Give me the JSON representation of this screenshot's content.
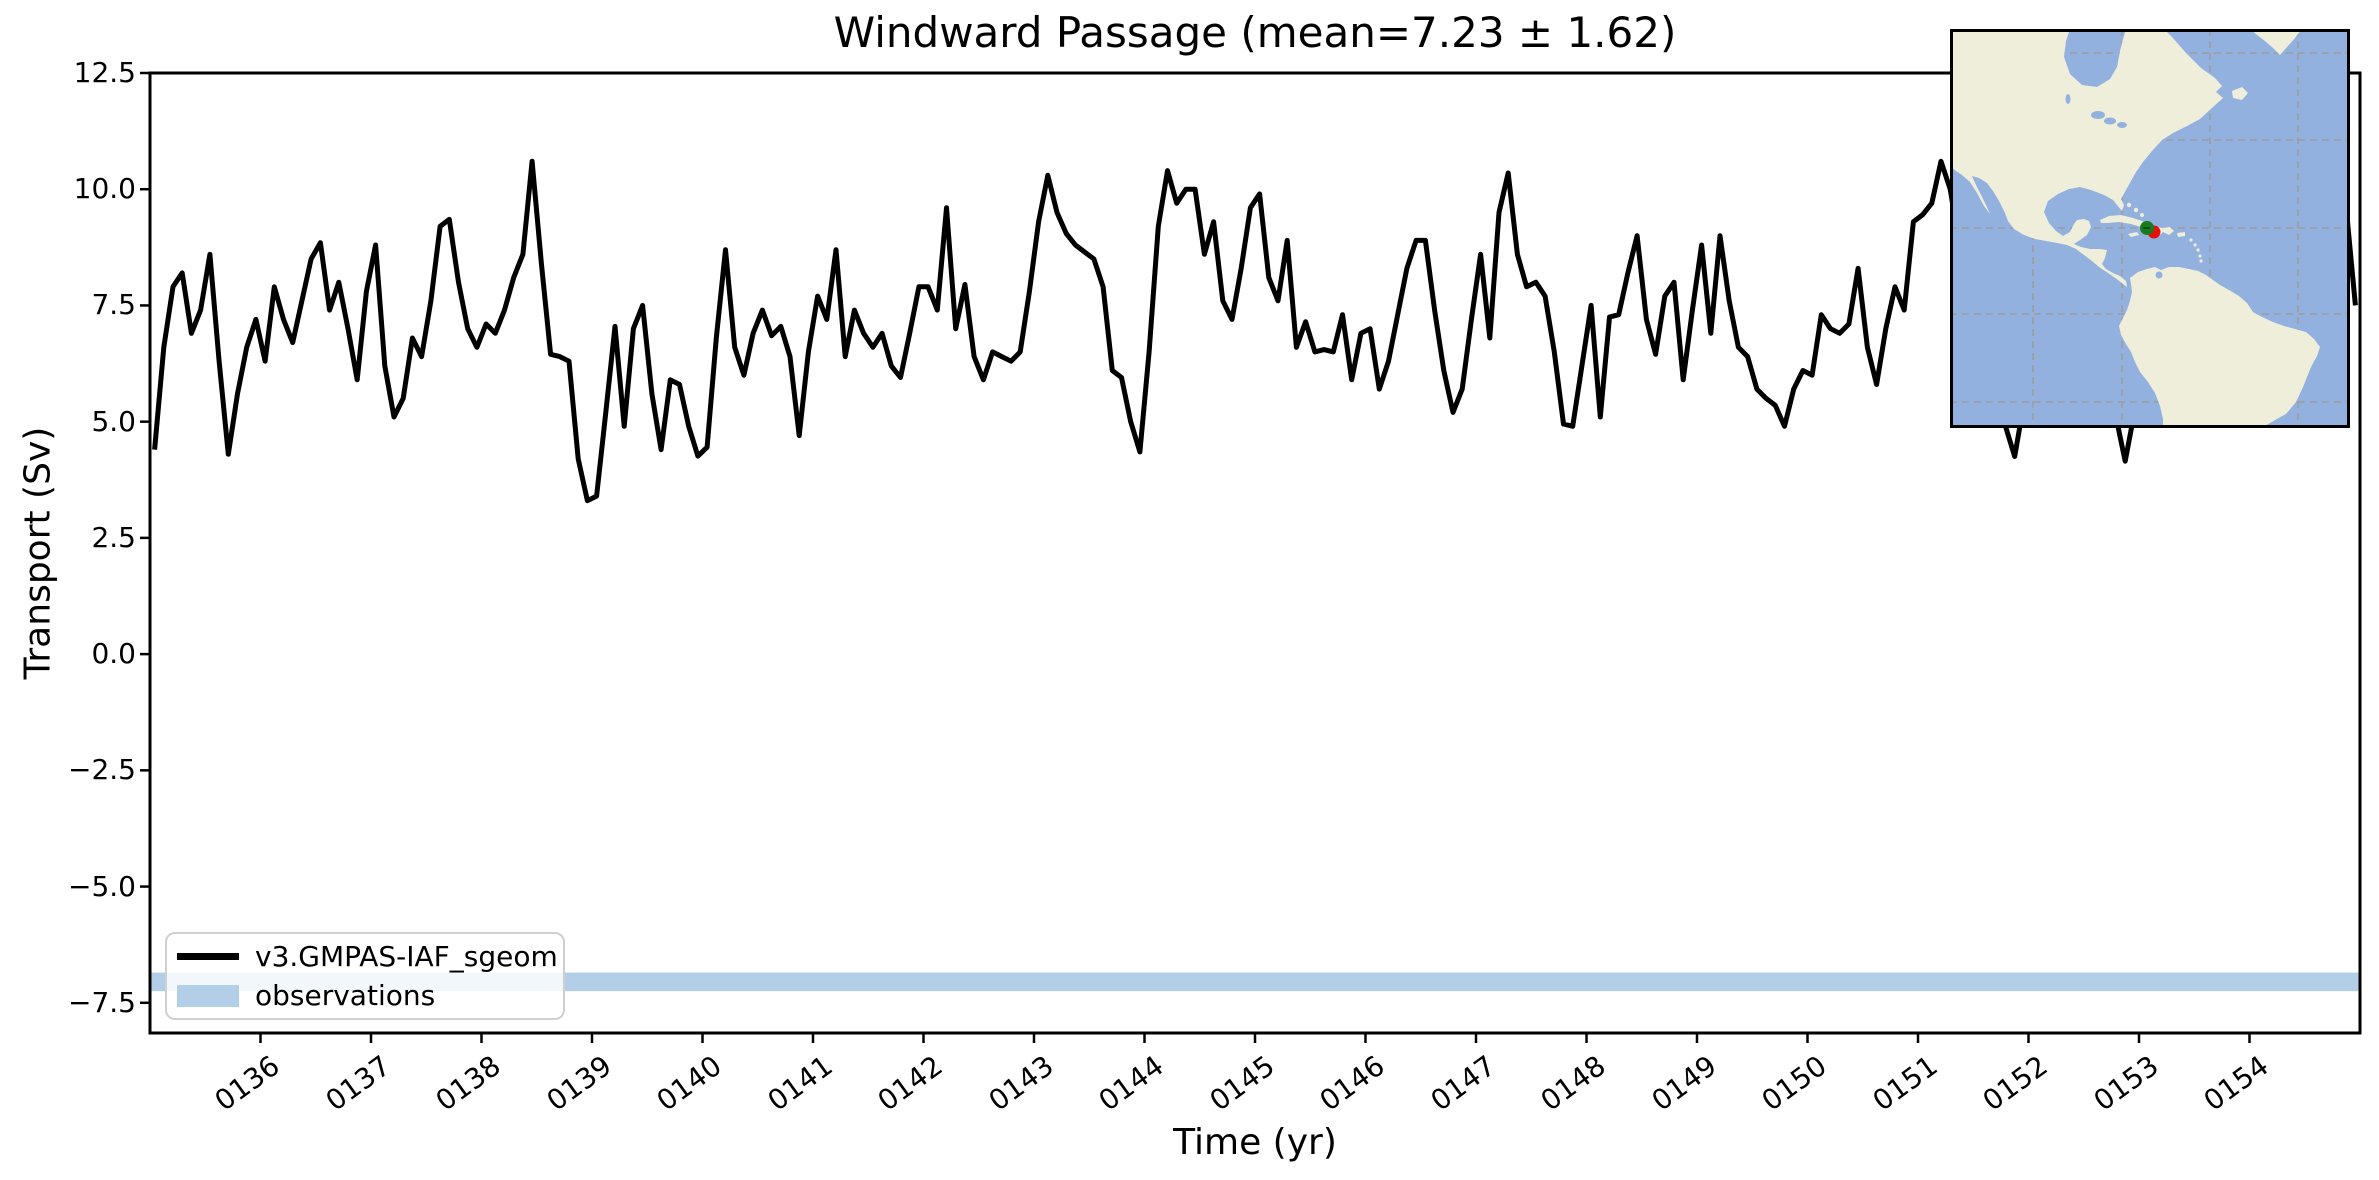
{
  "figure": {
    "title": "Windward Passage (mean=7.23 ± 1.62)"
  },
  "chart_data": {
    "type": "line",
    "title": "Windward Passage (mean=7.23 ± 1.62)",
    "xlabel": "Time (yr)",
    "ylabel": "Transport (Sv)",
    "mean": 7.23,
    "std": 1.62,
    "xlim": [
      135,
      155
    ],
    "ylim": [
      -8.15,
      12.5
    ],
    "grid": false,
    "legend_position": "lower left",
    "x_tick_values": [
      136,
      137,
      138,
      139,
      140,
      141,
      142,
      143,
      144,
      145,
      146,
      147,
      148,
      149,
      150,
      151,
      152,
      153,
      154
    ],
    "x_tick_labels": [
      "0136",
      "0137",
      "0138",
      "0139",
      "0140",
      "0141",
      "0142",
      "0143",
      "0144",
      "0145",
      "0146",
      "0147",
      "0148",
      "0149",
      "0150",
      "0151",
      "0152",
      "0153",
      "0154"
    ],
    "y_tick_values": [
      12.5,
      10.0,
      7.5,
      5.0,
      2.5,
      0.0,
      -2.5,
      -5.0,
      -7.5
    ],
    "y_tick_labels": [
      "12.5",
      "10.0",
      "7.5",
      "5.0",
      "2.5",
      "0.0",
      "−2.5",
      "−5.0",
      "−7.5"
    ],
    "series": [
      {
        "name": "v3.GMPAS-IAF_sgeom",
        "type": "line",
        "color": "#000000",
        "linewidth": 5,
        "x_start": 135.0417,
        "x_step": 0.083333,
        "values": [
          4.4,
          6.6,
          7.9,
          8.2,
          6.9,
          7.4,
          8.6,
          6.3,
          4.3,
          5.6,
          6.6,
          7.2,
          6.3,
          7.9,
          7.2,
          6.7,
          7.6,
          8.5,
          8.85,
          7.4,
          8.0,
          7.0,
          5.9,
          7.8,
          8.8,
          6.2,
          5.1,
          5.5,
          6.8,
          6.4,
          7.6,
          9.2,
          9.35,
          8.0,
          7.0,
          6.6,
          7.1,
          6.9,
          7.4,
          8.1,
          8.6,
          10.6,
          8.4,
          6.45,
          6.4,
          6.3,
          4.2,
          3.3,
          3.4,
          5.2,
          7.05,
          4.9,
          7.0,
          7.5,
          5.6,
          4.4,
          5.9,
          5.8,
          4.9,
          4.26,
          4.45,
          6.8,
          8.7,
          6.6,
          6.0,
          6.9,
          7.4,
          6.85,
          7.05,
          6.4,
          4.7,
          6.5,
          7.7,
          7.2,
          8.7,
          6.4,
          7.4,
          6.9,
          6.6,
          6.9,
          6.2,
          5.95,
          6.9,
          7.9,
          7.9,
          7.4,
          9.6,
          7.0,
          7.95,
          6.4,
          5.9,
          6.5,
          6.4,
          6.3,
          6.5,
          7.8,
          9.3,
          10.3,
          9.5,
          9.05,
          8.8,
          8.65,
          8.5,
          7.9,
          6.1,
          5.95,
          5.0,
          4.35,
          6.5,
          9.2,
          10.4,
          9.7,
          10.0,
          10.0,
          8.6,
          9.3,
          7.6,
          7.2,
          8.3,
          9.6,
          9.9,
          8.1,
          7.6,
          8.9,
          6.6,
          7.15,
          6.5,
          6.55,
          6.5,
          7.3,
          5.9,
          6.9,
          7.0,
          5.7,
          6.3,
          7.3,
          8.3,
          8.9,
          8.9,
          7.4,
          6.1,
          5.2,
          5.7,
          7.2,
          8.6,
          6.8,
          9.5,
          10.35,
          8.6,
          7.9,
          8.0,
          7.7,
          6.5,
          4.95,
          4.9,
          6.2,
          7.5,
          5.1,
          7.25,
          7.3,
          8.2,
          9.0,
          7.2,
          6.45,
          7.7,
          8.0,
          5.9,
          7.4,
          8.8,
          6.9,
          9.0,
          7.6,
          6.6,
          6.4,
          5.7,
          5.5,
          5.35,
          4.9,
          5.7,
          6.1,
          6.0,
          7.3,
          7.0,
          6.9,
          7.1,
          8.3,
          6.6,
          5.8,
          7.0,
          7.9,
          7.4,
          9.3,
          9.45,
          9.7,
          10.6,
          10.0,
          8.8,
          7.8,
          7.0,
          6.3,
          5.6,
          4.9,
          4.25,
          5.4,
          6.3,
          7.2,
          6.8,
          7.5,
          6.9,
          7.8,
          7.2,
          6.5,
          5.8,
          5.1,
          4.15,
          5.2,
          6.4,
          7.3,
          8.0,
          7.1,
          6.5,
          7.4,
          8.2,
          7.6,
          6.8,
          7.9,
          7.2,
          6.6,
          7.0,
          7.8,
          8.6,
          9.2,
          8.5,
          9.0,
          9.7,
          8.9,
          9.3,
          9.8,
          9.6,
          7.5
        ]
      },
      {
        "name": "observations",
        "type": "hband",
        "color": "#b3cfe8",
        "y_range": [
          -7.25,
          -6.85
        ]
      }
    ]
  },
  "legend": {
    "model_label": "v3.GMPAS-IAF_sgeom",
    "obs_label": "observations"
  },
  "inset_map": {
    "ocean_color": "#93b1df",
    "land_color": "#efeedb",
    "gridline_color": "#9c9c9c",
    "border_color": "#000000",
    "green_marker_color": "#1a7a1f",
    "red_marker_color": "#e3120b"
  }
}
